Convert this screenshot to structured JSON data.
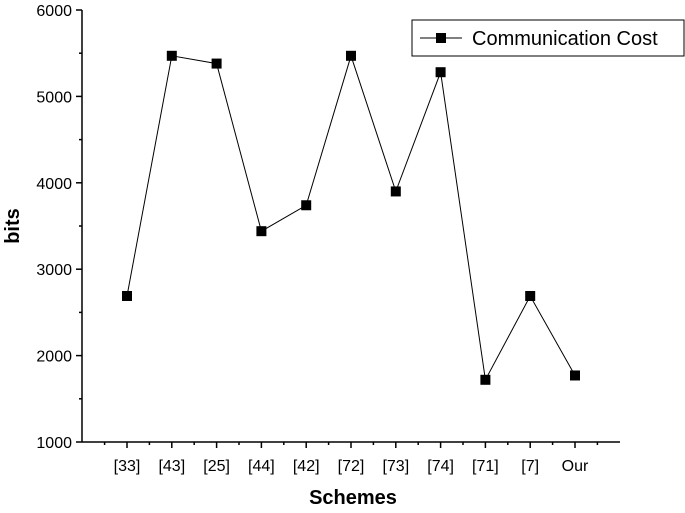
{
  "chart_data": {
    "type": "line",
    "title": "",
    "xlabel": "Schemes",
    "ylabel": "bits",
    "categories": [
      "[33]",
      "[43]",
      "[25]",
      "[44]",
      "[42]",
      "[72]",
      "[73]",
      "[74]",
      "[71]",
      "[7]",
      "Our"
    ],
    "series": [
      {
        "name": "Communication Cost",
        "values": [
          2690,
          5470,
          5380,
          3440,
          3740,
          5470,
          3900,
          5280,
          1720,
          2690,
          1770
        ]
      }
    ],
    "ylim": [
      1000,
      6000
    ],
    "yticks": [
      1000,
      2000,
      3000,
      4000,
      5000,
      6000
    ],
    "grid": false,
    "legend": "top-right",
    "colors": {
      "line": "#000000",
      "marker": "#000000",
      "axis": "#000000",
      "background": "#ffffff"
    }
  }
}
